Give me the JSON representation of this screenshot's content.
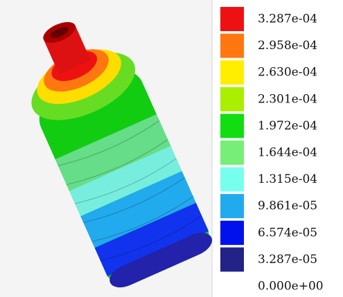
{
  "legend": {
    "labels": [
      "3.287e-04",
      "2.958e-04",
      "2.630e-04",
      "2.301e-04",
      "1.972e-04",
      "1.644e-04",
      "1.315e-04",
      "9.861e-05",
      "6.574e-05",
      "3.287e-05",
      "0.000e+00"
    ],
    "colors": [
      "#ee1111",
      "#ff7711",
      "#ffee00",
      "#aaee00",
      "#11dd11",
      "#77ee77",
      "#77ffee",
      "#22aaee",
      "#0011ee",
      "#222288"
    ]
  }
}
